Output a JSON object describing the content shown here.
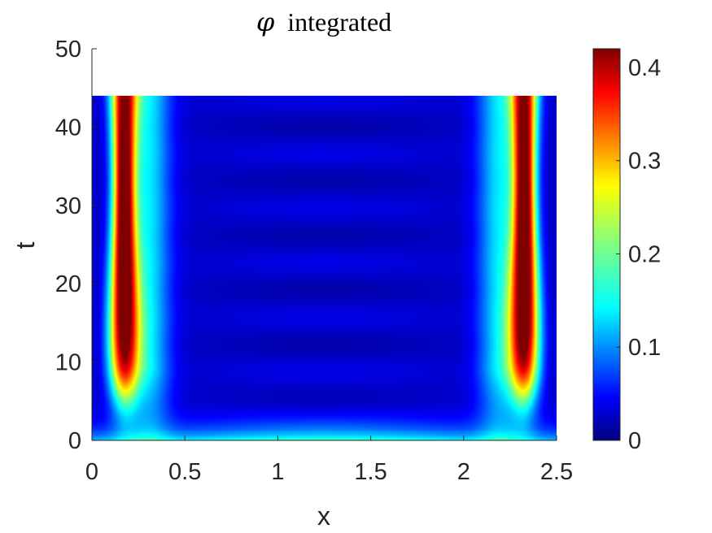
{
  "chart_data": {
    "type": "heatmap",
    "title_symbol": "φ",
    "title_text": "integrated",
    "xlabel": "x",
    "ylabel": "t",
    "xlim": [
      0,
      2.5
    ],
    "ylim": [
      0,
      50
    ],
    "xticks": [
      "0",
      "0.5",
      "1",
      "1.5",
      "2",
      "2.5"
    ],
    "yticks": [
      "0",
      "10",
      "20",
      "30",
      "40",
      "50"
    ],
    "data_extent": {
      "x": [
        0,
        2.5
      ],
      "t": [
        0,
        44
      ]
    },
    "colormap": "jet",
    "colorbar": {
      "limits": [
        0,
        0.42
      ],
      "ticks": [
        "0",
        "0.1",
        "0.2",
        "0.3",
        "0.4"
      ]
    },
    "grid": false,
    "field_description_values": {
      "peak_value": 0.42,
      "peak_x_positions": [
        0.17,
        2.33
      ],
      "peak_t_range": [
        10,
        40
      ],
      "background_value": 0.03,
      "boundary_layer_value_at_t0": 0.15
    }
  }
}
